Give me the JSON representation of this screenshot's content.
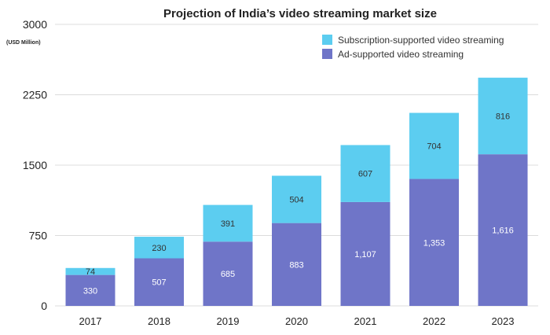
{
  "chart_data": {
    "type": "bar",
    "stacked": true,
    "title": "Projection of India’s video streaming market size",
    "ylabel": "(USD Million)",
    "xlabel": "",
    "categories": [
      "2017",
      "2018",
      "2019",
      "2020",
      "2021",
      "2022",
      "2023"
    ],
    "series": [
      {
        "name": "Ad-supported video streaming",
        "color": "#6f75c8",
        "values": [
          330,
          507,
          685,
          883,
          1107,
          1353,
          1616
        ],
        "labels": [
          "330",
          "507",
          "685",
          "883",
          "1,107",
          "1,353",
          "1,616"
        ]
      },
      {
        "name": "Subscription-supported video streaming",
        "color": "#5ccdf0",
        "values": [
          74,
          230,
          391,
          504,
          607,
          704,
          816
        ],
        "labels": [
          "74",
          "230",
          "391",
          "504",
          "607",
          "704",
          "816"
        ]
      }
    ],
    "ylim": [
      0,
      3000
    ],
    "yticks": [
      0,
      750,
      1500,
      2250,
      3000
    ],
    "ytick_labels": [
      "0",
      "750",
      "1500",
      "2250",
      "3000"
    ],
    "grid": true,
    "legend_position": "top-right",
    "legend_order": [
      "Subscription-supported video streaming",
      "Ad-supported video streaming"
    ]
  }
}
